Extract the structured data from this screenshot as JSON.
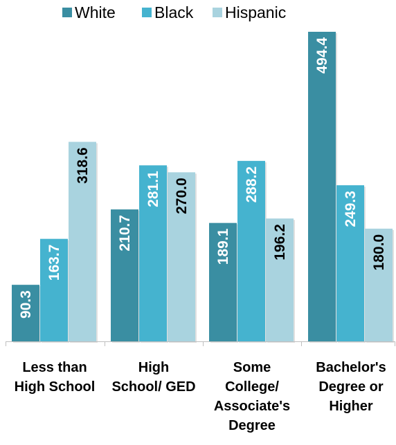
{
  "chart_data": {
    "type": "bar",
    "categories": [
      [
        "Less than",
        "High School"
      ],
      [
        "High",
        "School/ GED"
      ],
      [
        "Some",
        "College/",
        "Associate's",
        "Degree"
      ],
      [
        "Bachelor's",
        "Degree or",
        "Higher"
      ]
    ],
    "series": [
      {
        "name": "White",
        "color": "#3a8ea2",
        "values": [
          90.3,
          210.7,
          189.1,
          494.4
        ]
      },
      {
        "name": "Black",
        "color": "#45b3cf",
        "values": [
          163.7,
          281.1,
          288.2,
          249.3
        ]
      },
      {
        "name": "Hispanic",
        "color": "#a9d3df",
        "values": [
          318.6,
          270.0,
          196.2,
          180.0
        ]
      }
    ],
    "value_labels": [
      [
        "90.3",
        "210.7",
        "189.1",
        "494.4"
      ],
      [
        "163.7",
        "281.1",
        "288.2",
        "249.3"
      ],
      [
        "318.6",
        "270.0",
        "196.2",
        "180.0"
      ]
    ],
    "ylim": [
      0,
      500
    ],
    "grid": false,
    "legend_position": "top",
    "value_label_color_on_dark": "#ffffff",
    "value_label_color_on_light": "#000000"
  }
}
